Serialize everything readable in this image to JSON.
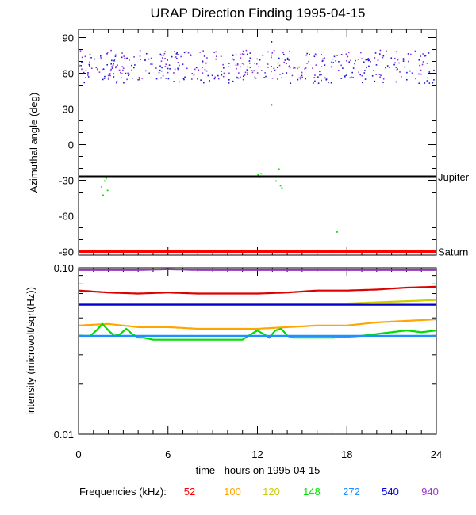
{
  "chart_data": [
    {
      "type": "scatter",
      "title": "URAP Direction Finding  1995-04-15",
      "ylabel": "Azimuthal angle (deg)",
      "xlim": [
        0,
        24
      ],
      "ylim": [
        -93,
        97
      ],
      "yticks": [
        90,
        60,
        30,
        0,
        -30,
        -60,
        -90
      ],
      "reference_lines": [
        {
          "label": "Jupiter",
          "y": -27,
          "color": "#000000"
        },
        {
          "label": "Saturn",
          "y": -90,
          "color": "#ff0000"
        }
      ],
      "series": [
        {
          "name": "940",
          "color": "#8a2be2",
          "band": [
            55,
            80
          ]
        },
        {
          "name": "540",
          "color": "#1a1acd",
          "band": [
            52,
            78
          ]
        },
        {
          "name": "148",
          "color": "#00e000",
          "points": [
            [
              1.5,
              -35
            ],
            [
              1.6,
              -42
            ],
            [
              1.7,
              -30
            ],
            [
              1.8,
              -28
            ],
            [
              1.9,
              -38
            ],
            [
              12.0,
              -25
            ],
            [
              12.1,
              -27
            ],
            [
              12.2,
              -24
            ],
            [
              13.2,
              -30
            ],
            [
              13.4,
              -20
            ],
            [
              13.5,
              -34
            ],
            [
              13.6,
              -36
            ],
            [
              17.3,
              -73
            ]
          ]
        }
      ],
      "outliers": [
        [
          12.9,
          87
        ],
        [
          12.9,
          34
        ]
      ]
    },
    {
      "type": "line",
      "ylabel": "intensity (microvolt/sqrt(Hz))",
      "xlabel": "time - hours on 1995-04-15",
      "xlim": [
        0,
        24
      ],
      "xticks": [
        0,
        6,
        12,
        18,
        24
      ],
      "yscale": "log",
      "ylim": [
        0.01,
        0.1
      ],
      "ytick_labels": [
        "0.10",
        "0.01"
      ],
      "series": [
        {
          "name": "940",
          "color": "#9932cc",
          "x": [
            0,
            4,
            6,
            8,
            12,
            16,
            20,
            24
          ],
          "values": [
            0.097,
            0.097,
            0.098,
            0.097,
            0.097,
            0.097,
            0.097,
            0.097
          ]
        },
        {
          "name": "52",
          "color": "#dd0000",
          "x": [
            0,
            2,
            4,
            6,
            8,
            10,
            12,
            14,
            16,
            18,
            20,
            22,
            24
          ],
          "values": [
            0.073,
            0.071,
            0.07,
            0.071,
            0.07,
            0.07,
            0.07,
            0.071,
            0.073,
            0.073,
            0.074,
            0.076,
            0.077
          ]
        },
        {
          "name": "120",
          "color": "#cccc00",
          "x": [
            0,
            6,
            12,
            18,
            20,
            22,
            24
          ],
          "values": [
            0.061,
            0.061,
            0.061,
            0.061,
            0.062,
            0.063,
            0.064
          ]
        },
        {
          "name": "540",
          "color": "#0000cc",
          "x": [
            0,
            6,
            12,
            18,
            24
          ],
          "values": [
            0.06,
            0.06,
            0.06,
            0.06,
            0.06
          ]
        },
        {
          "name": "100",
          "color": "#ffa500",
          "x": [
            0,
            2,
            4,
            6,
            8,
            10,
            12,
            14,
            16,
            18,
            20,
            22,
            24
          ],
          "values": [
            0.045,
            0.046,
            0.044,
            0.044,
            0.043,
            0.043,
            0.043,
            0.044,
            0.045,
            0.045,
            0.047,
            0.048,
            0.049
          ]
        },
        {
          "name": "148",
          "color": "#00dd00",
          "x": [
            0,
            0.8,
            1.2,
            1.6,
            2.0,
            2.4,
            2.8,
            3.2,
            3.6,
            4.0,
            4.4,
            5,
            7,
            9,
            11,
            11.6,
            12,
            12.4,
            12.8,
            13.2,
            13.6,
            14,
            14.4,
            15,
            17,
            19,
            20,
            21,
            22,
            23,
            24
          ],
          "values": [
            0.039,
            0.039,
            0.042,
            0.046,
            0.042,
            0.039,
            0.04,
            0.043,
            0.04,
            0.038,
            0.038,
            0.037,
            0.037,
            0.037,
            0.037,
            0.04,
            0.042,
            0.04,
            0.038,
            0.042,
            0.043,
            0.039,
            0.038,
            0.038,
            0.038,
            0.039,
            0.04,
            0.041,
            0.042,
            0.041,
            0.042
          ]
        },
        {
          "name": "272",
          "color": "#1e90ff",
          "x": [
            0,
            6,
            12,
            18,
            24
          ],
          "values": [
            0.039,
            0.039,
            0.039,
            0.039,
            0.039
          ]
        }
      ]
    }
  ],
  "legend": {
    "label": "Frequencies (kHz):",
    "items": [
      {
        "text": "52",
        "color": "#ff0000"
      },
      {
        "text": "100",
        "color": "#ffa500"
      },
      {
        "text": "120",
        "color": "#cccc00"
      },
      {
        "text": "148",
        "color": "#00e000"
      },
      {
        "text": "272",
        "color": "#1e90ff"
      },
      {
        "text": "540",
        "color": "#0000dd"
      },
      {
        "text": "940",
        "color": "#9932cc"
      }
    ]
  }
}
